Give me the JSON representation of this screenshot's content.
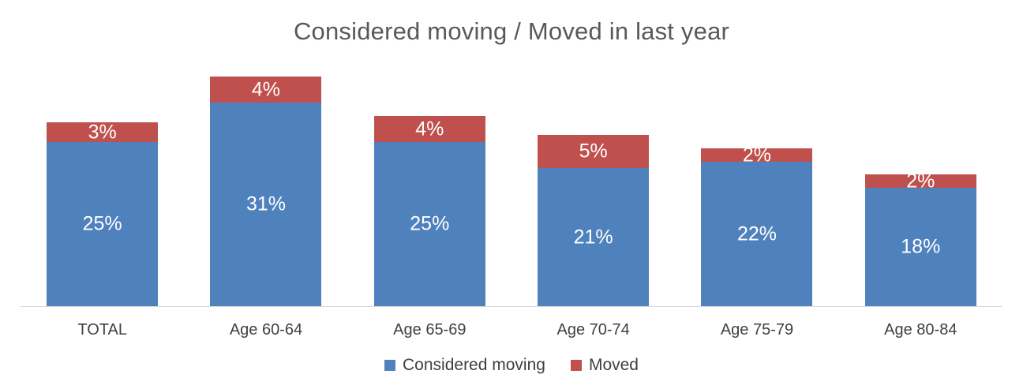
{
  "chart_data": {
    "type": "bar",
    "stacked": true,
    "title": "Considered moving / Moved in last year",
    "categories": [
      "TOTAL",
      "Age 60-64",
      "Age 65-69",
      "Age 70-74",
      "Age 75-79",
      "Age 80-84"
    ],
    "series": [
      {
        "name": "Considered moving",
        "color": "#4F81BD",
        "values": [
          25,
          31,
          25,
          21,
          22,
          18
        ],
        "labels": [
          "25%",
          "31%",
          "25%",
          "21%",
          "22%",
          "18%"
        ]
      },
      {
        "name": "Moved",
        "color": "#C0504D",
        "values": [
          3,
          4,
          4,
          5,
          2,
          2
        ],
        "labels": [
          "3%",
          "4%",
          "4%",
          "5%",
          "2%",
          "2%"
        ]
      }
    ],
    "ylim": [
      0,
      35
    ],
    "grid": false,
    "y_axis_visible": false,
    "legend_position": "bottom",
    "data_label_color": "#FFFFFF"
  },
  "styles": {
    "background": "#FFFFFF",
    "title_color": "#595959",
    "axis_text_color": "#404040",
    "axis_line_color": "#D9D9D9"
  }
}
